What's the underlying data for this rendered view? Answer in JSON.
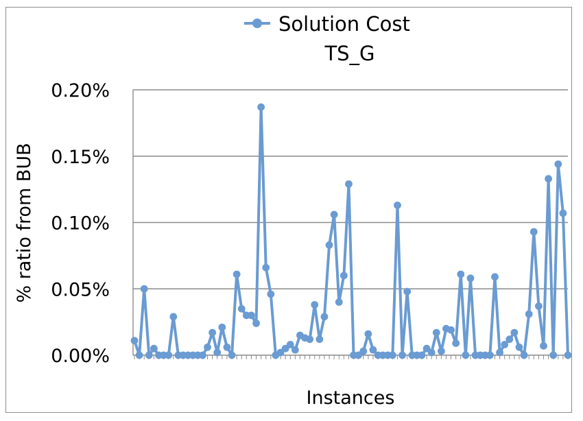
{
  "chart_data": {
    "type": "line",
    "legend": {
      "label": "Solution Cost",
      "placement": "top-center"
    },
    "title": "TS_G",
    "xlabel": "Instances",
    "ylabel": "% ratio from BUB",
    "y_ticks": [
      "0.00%",
      "0.05%",
      "0.10%",
      "0.15%",
      "0.20%"
    ],
    "ylim": [
      0,
      0.2
    ],
    "grid": "horizontal",
    "series": [
      {
        "name": "Solution Cost",
        "color": "#6a9bd2",
        "values": [
          0.011,
          0.0,
          0.05,
          0.0,
          0.005,
          0.0,
          0.0,
          0.0,
          0.029,
          0.0,
          0.0,
          0.0,
          0.0,
          0.0,
          0.0,
          0.006,
          0.017,
          0.002,
          0.021,
          0.006,
          0.0,
          0.061,
          0.035,
          0.03,
          0.03,
          0.024,
          0.187,
          0.066,
          0.046,
          0.0,
          0.002,
          0.005,
          0.008,
          0.004,
          0.015,
          0.013,
          0.012,
          0.038,
          0.012,
          0.029,
          0.083,
          0.106,
          0.04,
          0.06,
          0.129,
          0.0,
          0.0,
          0.003,
          0.016,
          0.004,
          0.0,
          0.0,
          0.0,
          0.0,
          0.113,
          0.0,
          0.048,
          0.0,
          0.0,
          0.0,
          0.005,
          0.002,
          0.017,
          0.003,
          0.02,
          0.019,
          0.009,
          0.061,
          0.0,
          0.058,
          0.0,
          0.0,
          0.0,
          0.0,
          0.059,
          0.002,
          0.008,
          0.012,
          0.017,
          0.006,
          0.0,
          0.031,
          0.093,
          0.037,
          0.007,
          0.133,
          0.0,
          0.144,
          0.107,
          0.0
        ]
      }
    ]
  }
}
